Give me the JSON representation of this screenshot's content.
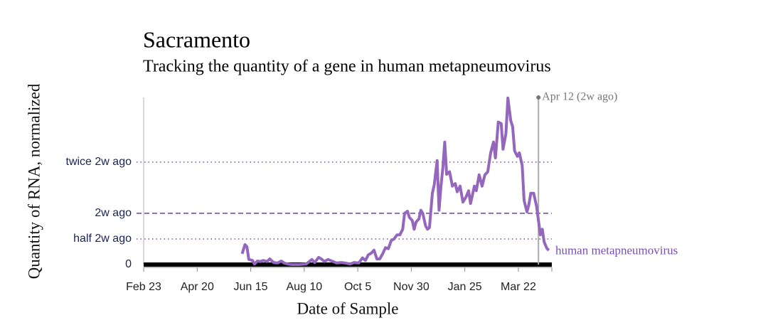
{
  "chart_data": {
    "type": "line",
    "title": "Sacramento",
    "subtitle": "Tracking the quantity of a gene in human metapneumovirus",
    "x_label": "Date of Sample",
    "y_label": "Quantity of RNA, normalized",
    "xlim": [
      0,
      427
    ],
    "xticks": [
      {
        "value": 0,
        "label": "Feb 23"
      },
      {
        "value": 56,
        "label": "Apr 20"
      },
      {
        "value": 112,
        "label": "Jun 15"
      },
      {
        "value": 168,
        "label": "Aug 10"
      },
      {
        "value": 224,
        "label": "Oct 5"
      },
      {
        "value": 280,
        "label": "Nov 30"
      },
      {
        "value": 336,
        "label": "Jan 25"
      },
      {
        "value": 392,
        "label": "Mar 22"
      }
    ],
    "ylim": [
      0,
      3.26
    ],
    "yticks": [
      0,
      {
        "value": 0.5,
        "label": "half 2w ago"
      },
      {
        "value": 1,
        "label": "2w ago"
      },
      {
        "value": 2,
        "label": "twice 2w ago"
      }
    ],
    "grid": true,
    "annotations": [
      {
        "x": 413,
        "text": "Apr 12 (2w ago)"
      }
    ],
    "x": [
      103,
      106,
      108,
      110,
      114,
      116,
      119,
      122,
      125,
      129,
      132,
      136,
      140,
      144,
      147,
      151,
      155,
      162,
      170,
      176,
      179,
      183,
      186,
      189,
      193,
      198,
      202,
      207,
      211,
      216,
      220,
      225,
      229,
      232,
      235,
      238,
      241,
      244,
      247,
      250,
      253,
      256,
      259,
      262,
      265,
      268,
      271,
      273,
      276,
      278,
      281,
      283,
      285,
      288,
      290,
      292,
      295,
      297,
      299,
      302,
      304,
      307,
      309,
      311,
      313,
      315,
      317,
      320,
      323,
      326,
      328,
      331,
      334,
      337,
      340,
      342,
      346,
      348,
      351,
      354,
      357,
      360,
      363,
      366,
      368,
      371,
      374,
      376,
      379,
      381,
      384,
      386,
      388,
      391,
      393,
      396,
      398,
      401,
      403,
      405,
      408,
      411,
      413,
      415,
      417,
      419,
      422,
      424
    ],
    "series": [
      {
        "name": "human metapneumovirus",
        "color": "#9467bd",
        "values": [
          0.21,
          0.39,
          0.35,
          0.1,
          0.08,
          0.01,
          0.07,
          0.06,
          0.08,
          0.06,
          0.11,
          0.04,
          0.03,
          0.07,
          0.03,
          0.01,
          0,
          0,
          0.01,
          0.1,
          0.04,
          0.14,
          0.11,
          0.06,
          0.1,
          0.06,
          0.03,
          0.04,
          0.03,
          0.01,
          0.04,
          0.03,
          0.13,
          0.08,
          0.19,
          0.22,
          0.28,
          0.11,
          0.11,
          0.21,
          0.33,
          0.31,
          0.47,
          0.5,
          0.58,
          0.58,
          0.69,
          1.0,
          1.04,
          0.92,
          0.86,
          0.69,
          0.83,
          0.89,
          1.06,
          1.0,
          0.75,
          0.69,
          0.72,
          1.39,
          1.56,
          2.03,
          1.06,
          1.53,
          1.89,
          2.39,
          1.76,
          1.81,
          1.53,
          1.58,
          1.42,
          1.53,
          1.22,
          1.31,
          1.44,
          1.19,
          1.53,
          1.44,
          1.75,
          1.53,
          1.75,
          1.81,
          2.18,
          2.39,
          2.08,
          2.78,
          2.75,
          2.25,
          2.56,
          3.25,
          2.81,
          2.69,
          2.22,
          2.11,
          2.18,
          1.94,
          1.25,
          1.03,
          1.17,
          1.39,
          1.39,
          1.14,
          0.86,
          0.58,
          0.69,
          0.44,
          0.31,
          0.28
        ]
      }
    ]
  }
}
